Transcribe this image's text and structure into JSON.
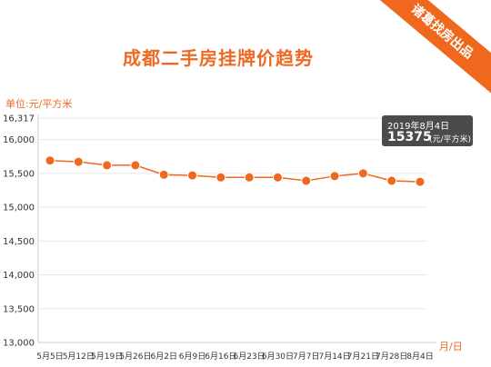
{
  "brand": {
    "ribbon_label": "诸葛找房出品"
  },
  "colors": {
    "accent": "#ee6a24",
    "line": "#f0671e",
    "grid": "#e8e8e8",
    "tooltip_bg": "#4b4b4b"
  },
  "tooltip": {
    "date": "2019年8月4日",
    "value": "15375",
    "unit": "(元/平方米)"
  },
  "chart_data": {
    "type": "line",
    "title": "成都二手房挂牌价趋势",
    "ylabel": "单位:元/平方米",
    "xlabel": "月/日",
    "categories": [
      "5月5日",
      "5月12日",
      "5月19日",
      "5月26日",
      "6月2日",
      "6月9日",
      "6月16日",
      "6月23日",
      "6月30日",
      "7月7日",
      "7月14日",
      "7月21日",
      "7月28日",
      "8月4日"
    ],
    "ylim": [
      13000,
      16317
    ],
    "yticks": [
      13000,
      13500,
      14000,
      14500,
      15000,
      15500,
      16000,
      16317
    ],
    "ytick_labels": [
      "13,000",
      "13,500",
      "14,000",
      "14,500",
      "15,000",
      "15,500",
      "16,000",
      "16,317"
    ],
    "grid": true,
    "legend": "none",
    "series": [
      {
        "values": [
          15690,
          15670,
          15620,
          15620,
          15480,
          15470,
          15440,
          15440,
          15440,
          15390,
          15460,
          15500,
          15390,
          15375
        ]
      }
    ]
  }
}
